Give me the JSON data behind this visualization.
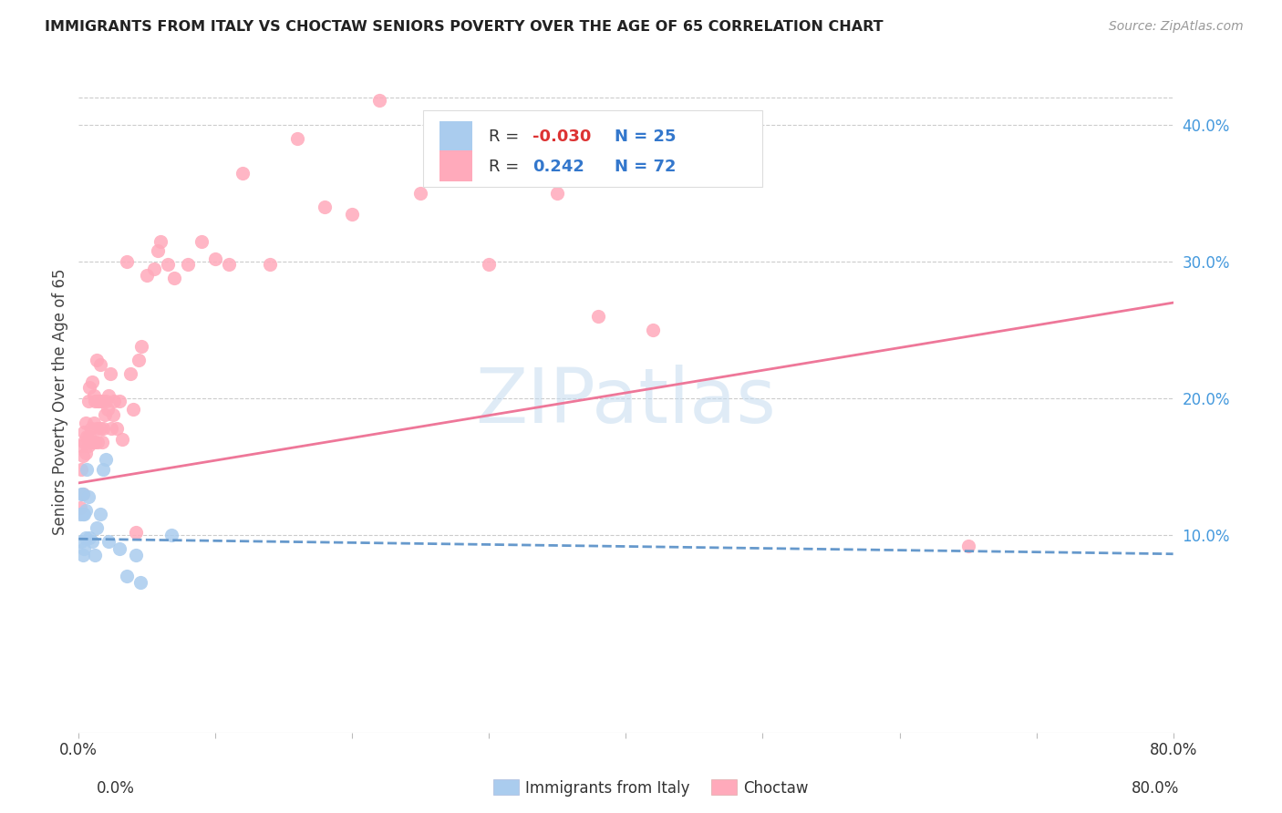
{
  "title": "IMMIGRANTS FROM ITALY VS CHOCTAW SENIORS POVERTY OVER THE AGE OF 65 CORRELATION CHART",
  "source": "Source: ZipAtlas.com",
  "ylabel": "Seniors Poverty Over the Age of 65",
  "xlim": [
    0.0,
    0.8
  ],
  "ylim": [
    -0.045,
    0.44
  ],
  "color_italy": "#AACCEE",
  "color_italy_dark": "#6699CC",
  "color_choctaw": "#FFAABB",
  "color_choctaw_dark": "#EE7799",
  "watermark": "ZIPatlas",
  "italy_x": [
    0.001,
    0.002,
    0.002,
    0.003,
    0.003,
    0.003,
    0.004,
    0.004,
    0.005,
    0.005,
    0.006,
    0.007,
    0.008,
    0.01,
    0.012,
    0.013,
    0.016,
    0.018,
    0.02,
    0.022,
    0.03,
    0.035,
    0.042,
    0.045,
    0.068
  ],
  "italy_y": [
    0.115,
    0.095,
    0.13,
    0.085,
    0.115,
    0.13,
    0.09,
    0.115,
    0.098,
    0.118,
    0.148,
    0.128,
    0.098,
    0.095,
    0.085,
    0.105,
    0.115,
    0.148,
    0.155,
    0.095,
    0.09,
    0.07,
    0.085,
    0.065,
    0.1
  ],
  "choctaw_x": [
    0.001,
    0.002,
    0.002,
    0.003,
    0.003,
    0.004,
    0.004,
    0.005,
    0.005,
    0.006,
    0.007,
    0.007,
    0.008,
    0.008,
    0.009,
    0.01,
    0.01,
    0.011,
    0.011,
    0.012,
    0.012,
    0.013,
    0.013,
    0.014,
    0.014,
    0.015,
    0.016,
    0.016,
    0.017,
    0.017,
    0.018,
    0.019,
    0.02,
    0.021,
    0.022,
    0.023,
    0.024,
    0.025,
    0.026,
    0.028,
    0.03,
    0.032,
    0.035,
    0.038,
    0.04,
    0.042,
    0.044,
    0.046,
    0.05,
    0.055,
    0.058,
    0.06,
    0.065,
    0.07,
    0.08,
    0.09,
    0.1,
    0.11,
    0.12,
    0.14,
    0.16,
    0.18,
    0.2,
    0.22,
    0.25,
    0.28,
    0.3,
    0.35,
    0.38,
    0.42,
    0.65
  ],
  "choctaw_y": [
    0.12,
    0.148,
    0.165,
    0.13,
    0.158,
    0.175,
    0.168,
    0.16,
    0.182,
    0.172,
    0.165,
    0.198,
    0.172,
    0.208,
    0.178,
    0.168,
    0.212,
    0.182,
    0.202,
    0.168,
    0.198,
    0.178,
    0.228,
    0.198,
    0.168,
    0.198,
    0.178,
    0.225,
    0.168,
    0.198,
    0.178,
    0.188,
    0.198,
    0.192,
    0.202,
    0.218,
    0.178,
    0.188,
    0.198,
    0.178,
    0.198,
    0.17,
    0.3,
    0.218,
    0.192,
    0.102,
    0.228,
    0.238,
    0.29,
    0.295,
    0.308,
    0.315,
    0.298,
    0.288,
    0.298,
    0.315,
    0.302,
    0.298,
    0.365,
    0.298,
    0.39,
    0.34,
    0.335,
    0.418,
    0.35,
    0.385,
    0.298,
    0.35,
    0.26,
    0.25,
    0.092
  ],
  "italy_line_x": [
    0.0,
    0.8
  ],
  "italy_line_y_start": 0.097,
  "italy_line_y_end": 0.086,
  "choctaw_line_x": [
    0.0,
    0.8
  ],
  "choctaw_line_y_start": 0.138,
  "choctaw_line_y_end": 0.27
}
